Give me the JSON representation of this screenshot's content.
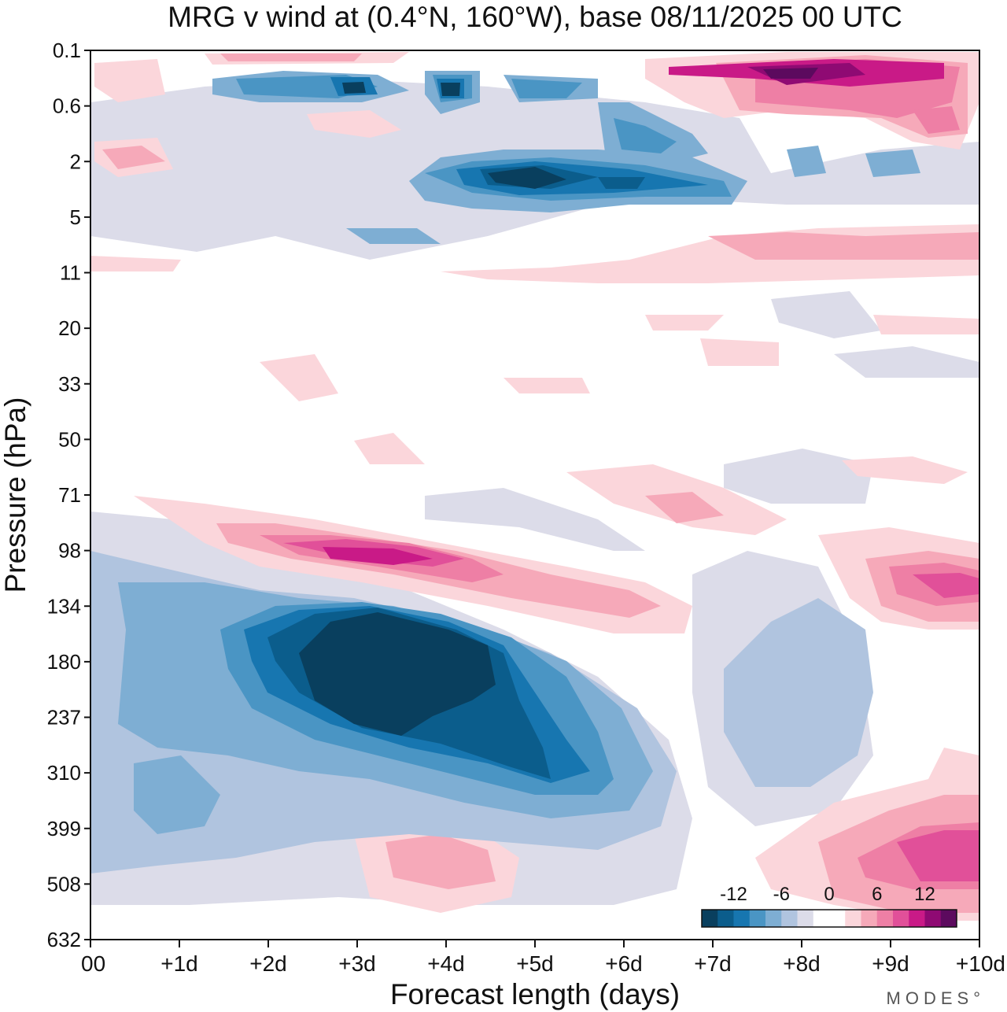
{
  "chart_data": {
    "type": "heatmap",
    "title": "MRG v wind at (0.4°N, 160°W),  base 08/11/2025  00 UTC",
    "xlabel": "Forecast length (days)",
    "ylabel": "Pressure (hPa)",
    "x_ticks": [
      "00",
      "+1d",
      "+2d",
      "+3d",
      "+4d",
      "+5d",
      "+6d",
      "+7d",
      "+8d",
      "+9d",
      "+10d"
    ],
    "y_ticks": [
      "0.1",
      "0.6",
      "2",
      "5",
      "11",
      "20",
      "33",
      "50",
      "71",
      "98",
      "134",
      "180",
      "237",
      "310",
      "399",
      "508",
      "632"
    ],
    "x_range_days": [
      0,
      10
    ],
    "colorbar": {
      "tick_labels": [
        "-12",
        "-6",
        "0",
        "6",
        "12"
      ],
      "levels": [
        -16,
        -14,
        -12,
        -10,
        -8,
        -6,
        -4,
        -2,
        0,
        2,
        4,
        6,
        8,
        10,
        12,
        14,
        16
      ],
      "colors": [
        "#093f5e",
        "#0b5d8c",
        "#1776b0",
        "#4a95c4",
        "#7eaed3",
        "#b0c4df",
        "#dcdce9",
        "#ffffff",
        "#ffffff",
        "#fbd6db",
        "#f6a9b9",
        "#ee7fa5",
        "#e15099",
        "#c91a87",
        "#8f0a73",
        "#5c0a5e"
      ]
    },
    "features": [
      {
        "name": "upper-trop negative max",
        "days": 3.6,
        "pressure_hPa": 180,
        "v_ms": -15
      },
      {
        "name": "lower-strat positive max",
        "days": 3.3,
        "pressure_hPa": 98,
        "v_ms": 11
      },
      {
        "name": "stratosphere negative max",
        "days": 5,
        "pressure_hPa": 3,
        "v_ms": -15
      },
      {
        "name": "mesosphere positive max",
        "days": 8.2,
        "pressure_hPa": 0.2,
        "v_ms": 15
      },
      {
        "name": "low-level positive (late)",
        "days": 9.8,
        "pressure_hPa": 460,
        "v_ms": 8
      }
    ]
  },
  "brand": "MODES°"
}
